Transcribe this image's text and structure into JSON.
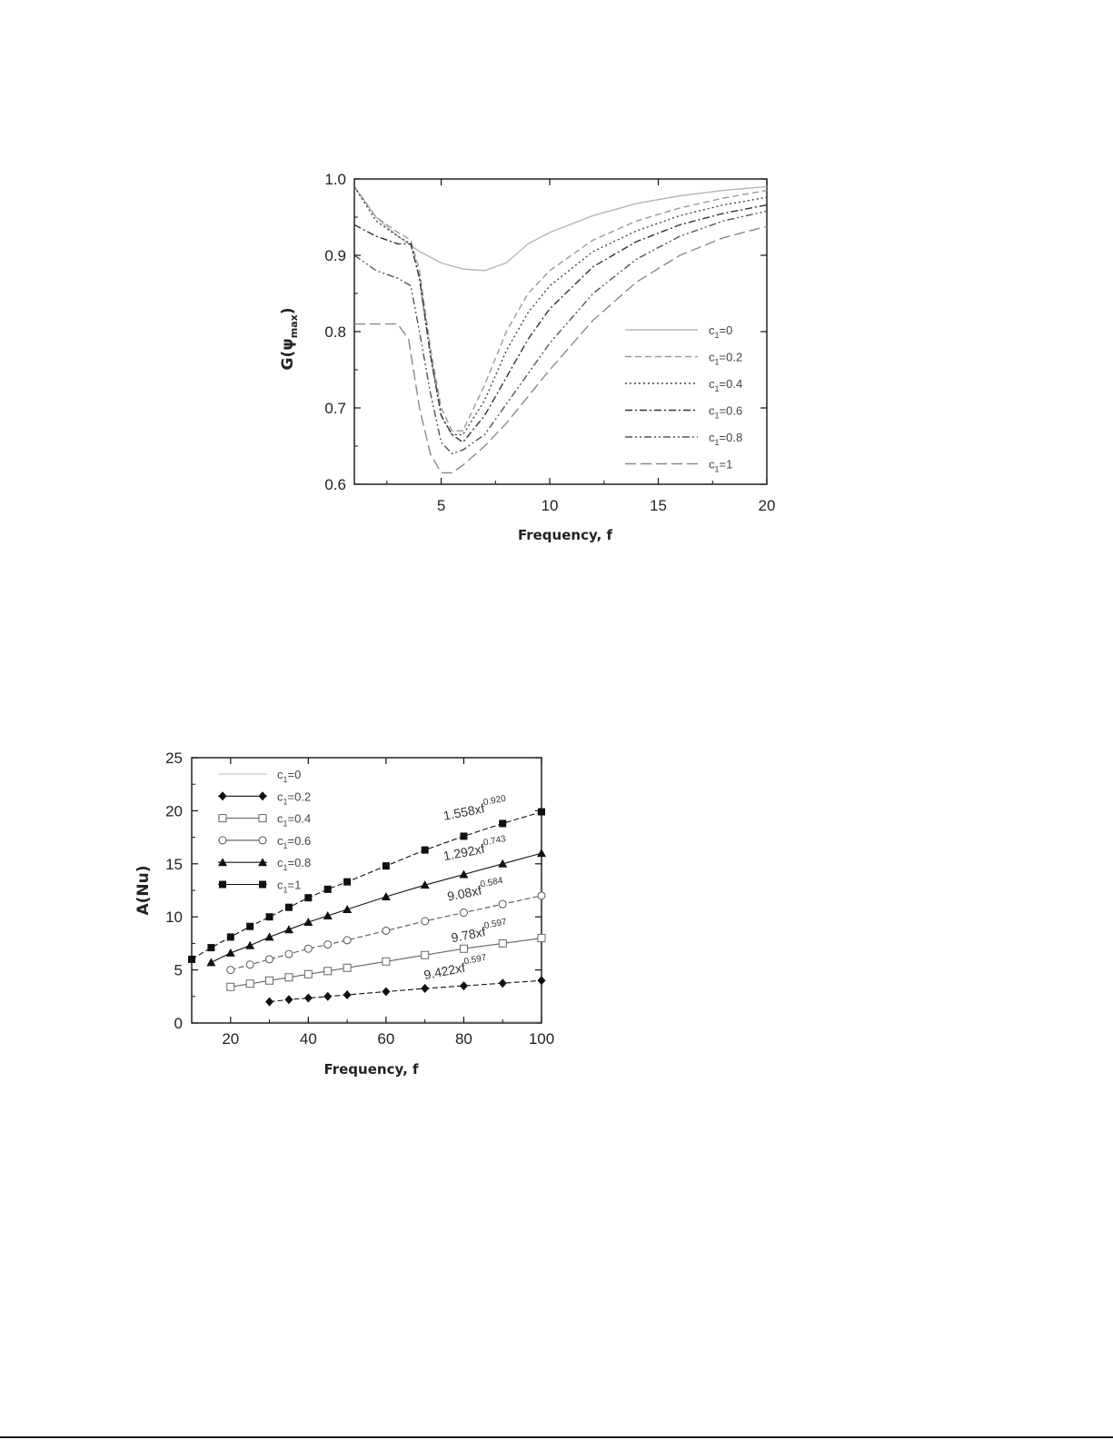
{
  "chart_data": [
    {
      "type": "line",
      "title": "",
      "xlabel": "Frequency, f",
      "ylabel": "G(ψmax)",
      "xlim": [
        1,
        20
      ],
      "ylim": [
        0.6,
        1.0
      ],
      "x_ticks": [
        "5",
        "10",
        "15",
        "20"
      ],
      "y_ticks": [
        "0.6",
        "0.7",
        "0.8",
        "0.9",
        "1.0"
      ],
      "legend_position": "bottom-right",
      "grid": false,
      "series": [
        {
          "name": "c1=0",
          "style": "solid",
          "color": "#b5b5b5",
          "x": [
            1,
            2,
            3,
            4,
            5,
            6,
            7,
            8,
            9,
            10,
            12,
            14,
            16,
            18,
            20
          ],
          "y": [
            0.99,
            0.95,
            0.925,
            0.905,
            0.89,
            0.882,
            0.88,
            0.89,
            0.915,
            0.93,
            0.952,
            0.968,
            0.978,
            0.985,
            0.99
          ]
        },
        {
          "name": "c1=0.2",
          "style": "dash",
          "color": "#9a9a9a",
          "x": [
            1,
            2,
            3,
            3.6,
            4,
            4.5,
            5,
            5.5,
            6,
            7,
            8,
            9,
            10,
            12,
            14,
            16,
            18,
            20
          ],
          "y": [
            0.99,
            0.95,
            0.93,
            0.92,
            0.88,
            0.78,
            0.7,
            0.67,
            0.67,
            0.73,
            0.8,
            0.85,
            0.88,
            0.92,
            0.945,
            0.962,
            0.975,
            0.985
          ]
        },
        {
          "name": "c1=0.4",
          "style": "dot",
          "color": "#444444",
          "x": [
            1,
            2,
            3,
            3.6,
            4,
            4.5,
            5,
            5.5,
            6,
            7,
            8,
            9,
            10,
            12,
            14,
            16,
            18,
            20
          ],
          "y": [
            0.99,
            0.945,
            0.925,
            0.915,
            0.87,
            0.77,
            0.69,
            0.665,
            0.665,
            0.71,
            0.775,
            0.825,
            0.86,
            0.905,
            0.932,
            0.952,
            0.966,
            0.976
          ]
        },
        {
          "name": "c1=0.6",
          "style": "dashdot",
          "color": "#333333",
          "x": [
            1,
            2,
            3,
            3.6,
            4,
            4.5,
            5,
            5.5,
            6,
            7,
            8,
            9,
            10,
            12,
            14,
            16,
            18,
            20
          ],
          "y": [
            0.94,
            0.925,
            0.915,
            0.915,
            0.87,
            0.77,
            0.69,
            0.665,
            0.655,
            0.69,
            0.74,
            0.79,
            0.83,
            0.885,
            0.918,
            0.94,
            0.955,
            0.966
          ]
        },
        {
          "name": "c1=0.8",
          "style": "dashdotdot",
          "color": "#555555",
          "x": [
            1,
            2,
            3,
            3.6,
            4,
            4.5,
            5,
            5.5,
            6,
            7,
            8,
            9,
            10,
            12,
            14,
            16,
            18,
            20
          ],
          "y": [
            0.9,
            0.88,
            0.87,
            0.86,
            0.8,
            0.72,
            0.655,
            0.64,
            0.645,
            0.665,
            0.705,
            0.745,
            0.785,
            0.85,
            0.895,
            0.925,
            0.945,
            0.958
          ]
        },
        {
          "name": "c1=1",
          "style": "longdash",
          "color": "#8a8a8a",
          "x": [
            1,
            2,
            3,
            3.5,
            4,
            4.5,
            5,
            5.5,
            6,
            7,
            8,
            9,
            10,
            12,
            14,
            16,
            18,
            20
          ],
          "y": [
            0.81,
            0.81,
            0.81,
            0.79,
            0.7,
            0.64,
            0.615,
            0.615,
            0.625,
            0.65,
            0.68,
            0.715,
            0.75,
            0.815,
            0.865,
            0.9,
            0.923,
            0.938
          ]
        }
      ]
    },
    {
      "type": "scatter",
      "title": "",
      "xlabel": "Frequency, f",
      "ylabel": "A(Nu)",
      "xlim": [
        10,
        100
      ],
      "ylim": [
        0,
        25
      ],
      "x_ticks": [
        "20",
        "40",
        "60",
        "80",
        "100"
      ],
      "y_ticks": [
        "0",
        "5",
        "10",
        "15",
        "20",
        "25"
      ],
      "legend_position": "top-left",
      "grid": false,
      "series": [
        {
          "name": "c1=0",
          "marker": "none",
          "color": "#bbbbbb",
          "x": [
            30,
            35,
            40,
            45,
            50,
            60,
            70,
            80,
            90,
            100
          ],
          "y": [
            0.1,
            0.1,
            0.1,
            0.1,
            0.1,
            0.1,
            0.1,
            0.1,
            0.1,
            0.1
          ]
        },
        {
          "name": "c1=0.2",
          "marker": "diamond",
          "color": "#111111",
          "fit": "9.422xf^0.597",
          "x": [
            30,
            35,
            40,
            45,
            50,
            60,
            70,
            80,
            90,
            100
          ],
          "y": [
            2.0,
            2.2,
            2.35,
            2.5,
            2.65,
            2.95,
            3.25,
            3.5,
            3.75,
            4.0
          ]
        },
        {
          "name": "c1=0.4",
          "marker": "square-open",
          "color": "#666666",
          "fit": "9.78xf^0.597",
          "x": [
            20,
            25,
            30,
            35,
            40,
            45,
            50,
            60,
            70,
            80,
            90,
            100
          ],
          "y": [
            3.4,
            3.7,
            4.0,
            4.3,
            4.6,
            4.9,
            5.2,
            5.8,
            6.4,
            7.0,
            7.5,
            8.0
          ]
        },
        {
          "name": "c1=0.6",
          "marker": "circle-open",
          "color": "#555555",
          "fit": "9.08xf^0.584",
          "x": [
            20,
            25,
            30,
            35,
            40,
            45,
            50,
            60,
            70,
            80,
            90,
            100
          ],
          "y": [
            5.0,
            5.5,
            6.0,
            6.5,
            7.0,
            7.4,
            7.8,
            8.7,
            9.6,
            10.4,
            11.2,
            12.0
          ]
        },
        {
          "name": "c1=0.8",
          "marker": "triangle",
          "color": "#111111",
          "fit": "1.292xf^0.743",
          "x": [
            15,
            20,
            25,
            30,
            35,
            40,
            45,
            50,
            60,
            70,
            80,
            90,
            100
          ],
          "y": [
            5.7,
            6.6,
            7.3,
            8.1,
            8.8,
            9.5,
            10.1,
            10.7,
            11.9,
            13.0,
            14.0,
            15.0,
            16.0
          ]
        },
        {
          "name": "c1=1",
          "marker": "square",
          "color": "#111111",
          "fit": "1.558xf^0.920",
          "x": [
            10,
            15,
            20,
            25,
            30,
            35,
            40,
            45,
            50,
            60,
            70,
            80,
            90,
            100
          ],
          "y": [
            6.0,
            7.1,
            8.1,
            9.1,
            10.0,
            10.9,
            11.8,
            12.6,
            13.3,
            14.8,
            16.3,
            17.6,
            18.8,
            19.9
          ]
        }
      ],
      "annotations": [
        {
          "text": "1.558xf^0.920",
          "x": 75,
          "y": 19.1
        },
        {
          "text": "1.292xf^0.743",
          "x": 75,
          "y": 15.3
        },
        {
          "text": "9.08xf^0.584",
          "x": 76,
          "y": 11.5
        },
        {
          "text": "9.78xf^0.597",
          "x": 77,
          "y": 7.6
        },
        {
          "text": "9.422xf^0.597",
          "x": 70,
          "y": 4.1
        }
      ]
    }
  ]
}
